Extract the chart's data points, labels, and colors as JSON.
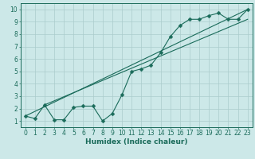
{
  "title": "",
  "xlabel": "Humidex (Indice chaleur)",
  "ylabel": "",
  "xlim": [
    -0.5,
    23.5
  ],
  "ylim": [
    0.5,
    10.5
  ],
  "xticks": [
    0,
    1,
    2,
    3,
    4,
    5,
    6,
    7,
    8,
    9,
    10,
    11,
    12,
    13,
    14,
    15,
    16,
    17,
    18,
    19,
    20,
    21,
    22,
    23
  ],
  "yticks": [
    1,
    2,
    3,
    4,
    5,
    6,
    7,
    8,
    9,
    10
  ],
  "bg_color": "#cce8e8",
  "grid_color": "#aacccc",
  "line_color": "#1a6b5a",
  "data_x": [
    0,
    1,
    2,
    3,
    4,
    5,
    6,
    7,
    8,
    9,
    10,
    11,
    12,
    13,
    14,
    15,
    16,
    17,
    18,
    19,
    20,
    21,
    22,
    23
  ],
  "data_y": [
    1.4,
    1.2,
    2.3,
    1.1,
    1.1,
    2.1,
    2.2,
    2.2,
    1.0,
    1.6,
    3.1,
    5.0,
    5.2,
    5.5,
    6.5,
    7.8,
    8.7,
    9.2,
    9.2,
    9.5,
    9.7,
    9.2,
    9.2,
    10.0
  ],
  "line1_x": [
    0,
    23
  ],
  "line1_y": [
    1.4,
    10.0
  ],
  "line2_x": [
    2,
    23
  ],
  "line2_y": [
    2.3,
    9.2
  ],
  "marker_size": 2.5,
  "line_width": 0.8,
  "tick_fontsize": 5.5,
  "xlabel_fontsize": 6.5
}
